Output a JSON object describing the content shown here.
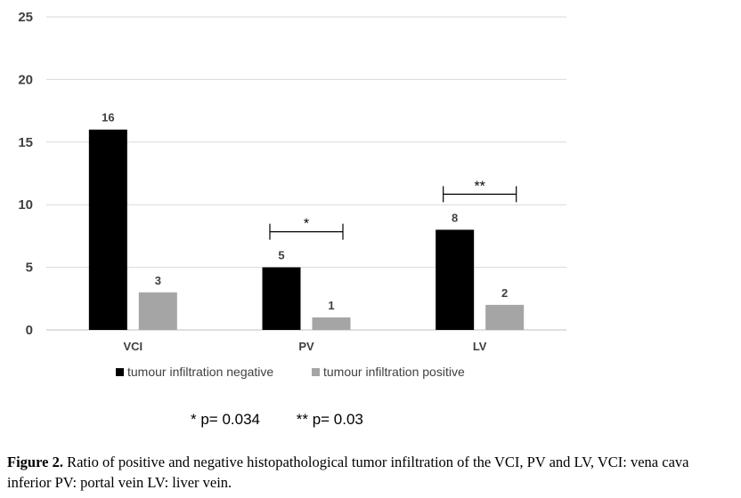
{
  "chart_data": {
    "type": "bar",
    "categories": [
      "VCI",
      "PV",
      "LV"
    ],
    "series": [
      {
        "name": "tumour infiltration negative",
        "values": [
          16,
          5,
          8
        ],
        "color": "#000000"
      },
      {
        "name": "tumour infiltration positive",
        "values": [
          3,
          1,
          2
        ],
        "color": "#a5a5a5"
      }
    ],
    "ylim": [
      0,
      25
    ],
    "yticks": [
      0,
      5,
      10,
      15,
      20,
      25
    ],
    "grid": true,
    "legend_position": "bottom",
    "significance": [
      {
        "category": "PV",
        "marker": "*"
      },
      {
        "category": "LV",
        "marker": "**"
      }
    ]
  },
  "pvalue_notes": [
    "* p= 0.034",
    "** p= 0.03"
  ],
  "caption": {
    "label": "Figure 2.",
    "text": " Ratio of positive and negative histopathological tumor infiltration of the VCI, PV and LV, VCI: vena cava inferior PV: portal vein LV: liver vein."
  }
}
